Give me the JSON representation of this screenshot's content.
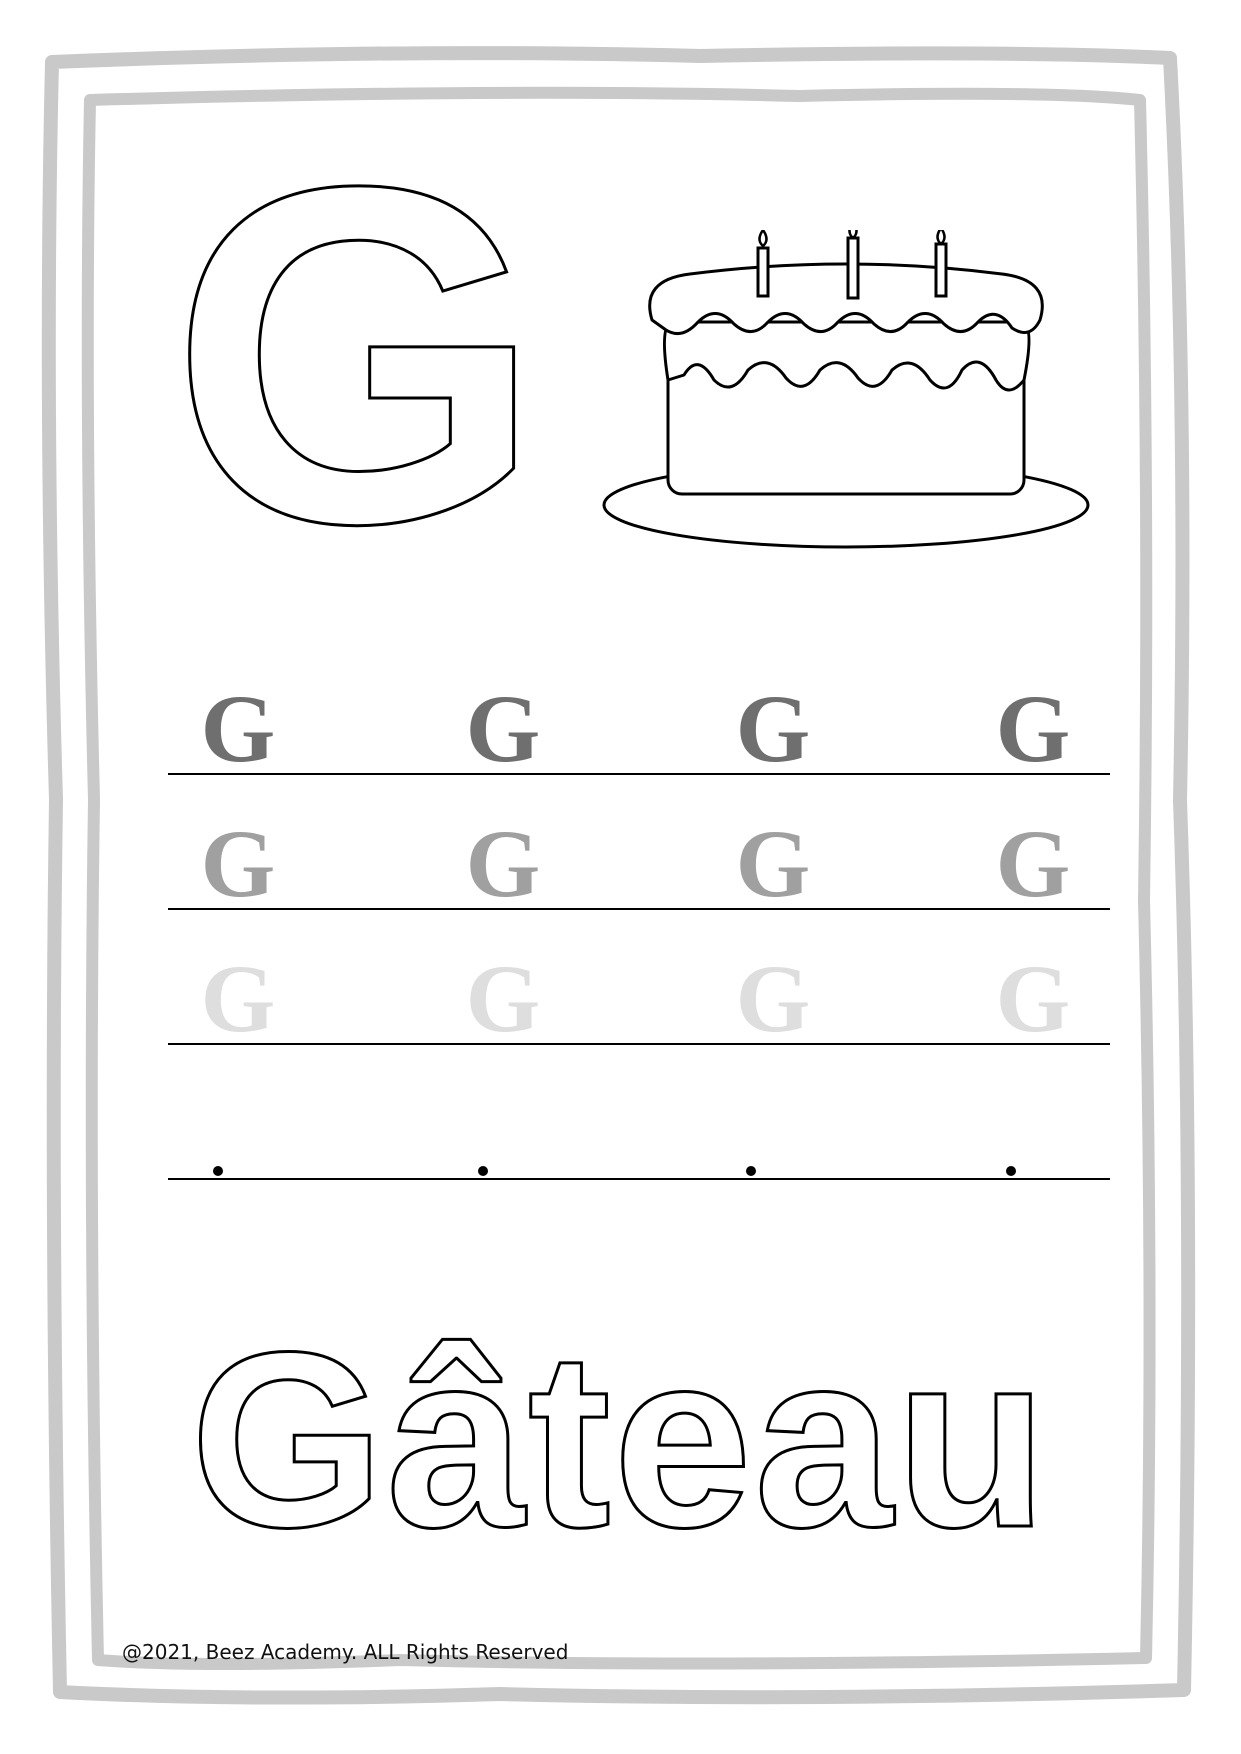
{
  "worksheet": {
    "letter": "G",
    "picture": "birthday-cake-icon",
    "trace_rows": [
      {
        "letters": [
          "G",
          "G",
          "G",
          "G"
        ],
        "color": "#6f6f6f"
      },
      {
        "letters": [
          "G",
          "G",
          "G",
          "G"
        ],
        "color": "#a0a0a0"
      },
      {
        "letters": [
          "G",
          "G",
          "G",
          "G"
        ],
        "color": "#dedede"
      }
    ],
    "dot_row": {
      "count": 4
    },
    "word": "Gâteau",
    "footer": "@2021, Beez Academy. ALL Rights Reserved"
  },
  "colors": {
    "frame": "#c9c9c9",
    "outline": "#000000"
  }
}
